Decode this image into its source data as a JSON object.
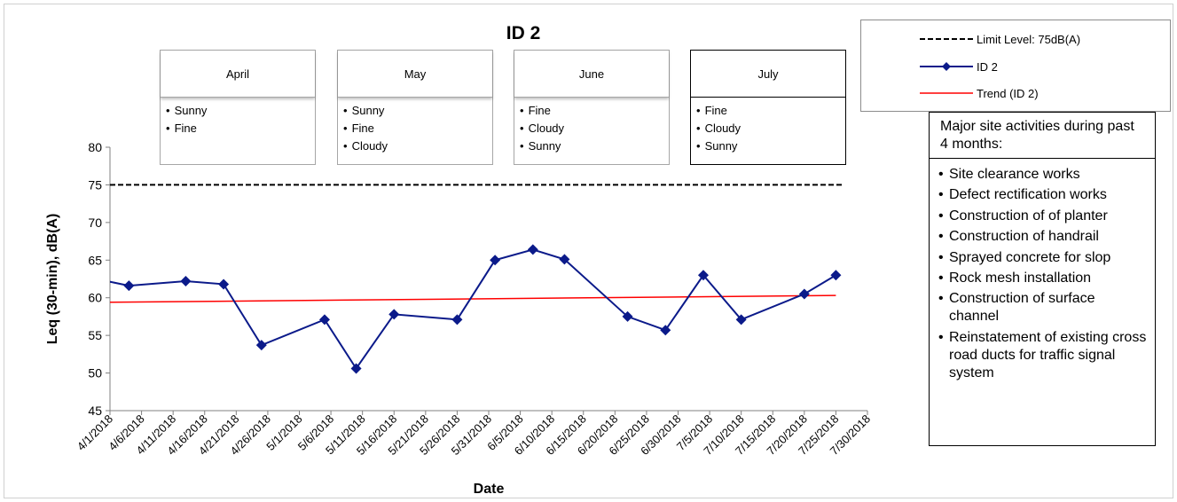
{
  "chart_data": {
    "type": "line",
    "title": "ID 2",
    "xlabel": "Date",
    "ylabel": "Leq (30-min), dB(A)",
    "ylim": [
      45,
      80
    ],
    "y_ticks": [
      45,
      50,
      55,
      60,
      65,
      70,
      75,
      80
    ],
    "xlim": [
      "2018-04-01",
      "2018-07-30"
    ],
    "x_ticks": [
      "4/1/2018",
      "4/6/2018",
      "4/11/2018",
      "4/16/2018",
      "4/21/2018",
      "4/26/2018",
      "5/1/2018",
      "5/6/2018",
      "5/11/2018",
      "5/16/2018",
      "5/21/2018",
      "5/26/2018",
      "5/31/2018",
      "6/5/2018",
      "6/10/2018",
      "6/15/2018",
      "6/20/2018",
      "6/25/2018",
      "6/30/2018",
      "7/5/2018",
      "7/10/2018",
      "7/15/2018",
      "7/20/2018",
      "7/25/2018",
      "7/30/2018"
    ],
    "grid": false,
    "legend_position": "top-right",
    "series": [
      {
        "name": "ID 2",
        "color": "#0b1a8a",
        "marker": "diamond",
        "x": [
          "2018-03-31",
          "2018-04-04",
          "2018-04-13",
          "2018-04-19",
          "2018-04-25",
          "2018-05-05",
          "2018-05-10",
          "2018-05-16",
          "2018-05-26",
          "2018-06-01",
          "2018-06-07",
          "2018-06-12",
          "2018-06-22",
          "2018-06-28",
          "2018-07-04",
          "2018-07-10",
          "2018-07-20",
          "2018-07-25"
        ],
        "y": [
          62.3,
          61.6,
          62.2,
          61.8,
          53.7,
          57.1,
          50.6,
          57.8,
          57.1,
          65.0,
          66.4,
          65.1,
          57.5,
          55.7,
          63.0,
          57.1,
          60.5,
          63.0
        ]
      }
    ],
    "reference_lines": [
      {
        "name": "Limit Level: 75dB(A)",
        "y": 75,
        "color": "#000000",
        "style": "dashed"
      },
      {
        "name": "Trend (ID 2)",
        "color": "#ff0000",
        "style": "solid",
        "from": [
          "2018-04-01",
          59.4
        ],
        "to": [
          "2018-07-25",
          60.3
        ]
      }
    ]
  },
  "legend": {
    "items": [
      {
        "label": "Limit Level: 75dB(A)"
      },
      {
        "label": "ID 2"
      },
      {
        "label": "Trend (ID 2)"
      }
    ]
  },
  "months": [
    {
      "name": "April",
      "weather": [
        "Sunny",
        "Fine"
      ]
    },
    {
      "name": "May",
      "weather": [
        "Sunny",
        "Fine",
        "Cloudy"
      ]
    },
    {
      "name": "June",
      "weather": [
        "Fine",
        "Cloudy",
        "Sunny"
      ]
    },
    {
      "name": "July",
      "weather": [
        "Fine",
        "Cloudy",
        "Sunny"
      ]
    }
  ],
  "activities": {
    "title": "Major site activities during past 4 months:",
    "items": [
      "Site clearance works",
      "Defect rectification works",
      "Construction of of planter",
      "Construction of handrail",
      "Sprayed concrete for slop",
      "Rock mesh installation",
      "Construction of surface channel",
      "Reinstatement of existing cross road ducts for traffic signal system"
    ]
  },
  "colors": {
    "series": "#0b1a8a",
    "trend": "#ff0000",
    "limit": "#000000"
  }
}
